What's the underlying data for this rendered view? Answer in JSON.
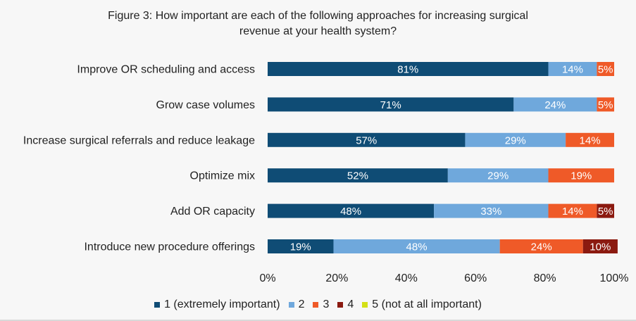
{
  "chart_data": {
    "type": "bar",
    "orientation": "horizontal",
    "stacked": true,
    "title_lines": [
      "Figure 3: How important are each of the following approaches for increasing surgical",
      "revenue at your health system?"
    ],
    "categories": [
      "Improve OR scheduling and access",
      "Grow case volumes",
      "Increase surgical referrals and reduce leakage",
      "Optimize mix",
      "Add OR capacity",
      "Introduce new procedure offerings"
    ],
    "series": [
      {
        "name": "1 (extremely important)",
        "color": "#0f4c75",
        "values": [
          81,
          71,
          57,
          52,
          48,
          19
        ]
      },
      {
        "name": "2",
        "color": "#6fa8dc",
        "values": [
          14,
          24,
          29,
          29,
          33,
          48
        ]
      },
      {
        "name": "3",
        "color": "#ef5a28",
        "values": [
          5,
          5,
          14,
          19,
          14,
          24
        ]
      },
      {
        "name": "4",
        "color": "#8b1a10",
        "values": [
          0,
          0,
          0,
          0,
          5,
          10
        ]
      },
      {
        "name": "5 (not at all important)",
        "color": "#d4e017",
        "values": [
          0,
          0,
          0,
          0,
          0,
          0
        ]
      }
    ],
    "data_labels": [
      [
        "81%",
        "14%",
        "5%",
        "",
        ""
      ],
      [
        "71%",
        "24%",
        "5%",
        "",
        ""
      ],
      [
        "57%",
        "29%",
        "14%",
        "",
        ""
      ],
      [
        "52%",
        "29%",
        "19%",
        "",
        ""
      ],
      [
        "48%",
        "33%",
        "14%",
        "5%",
        ""
      ],
      [
        "19%",
        "48%",
        "24%",
        "10%",
        ""
      ]
    ],
    "xlim": [
      0,
      100
    ],
    "xticks": [
      "0%",
      "20%",
      "40%",
      "60%",
      "80%",
      "100%"
    ],
    "grid": false,
    "legend_position": "bottom"
  }
}
